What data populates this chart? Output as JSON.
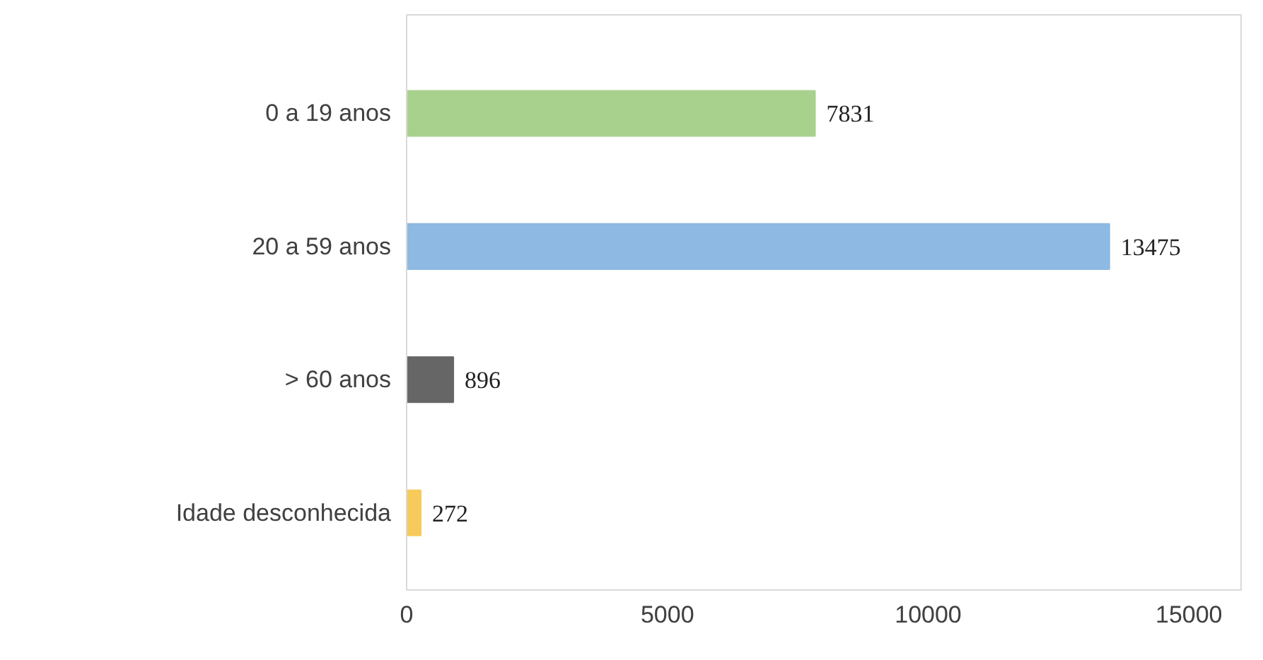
{
  "chart_data": {
    "type": "bar",
    "orientation": "horizontal",
    "categories": [
      "0 a 19 anos",
      "20 a 59 anos",
      "> 60 anos",
      "Idade desconhecida"
    ],
    "values": [
      7831,
      13475,
      896,
      272
    ],
    "colors": [
      "#a9d18e",
      "#8db9e2",
      "#666666",
      "#f6cb5c"
    ],
    "xlim": [
      0,
      16000
    ],
    "xticks": [
      0,
      5000,
      10000,
      15000
    ],
    "grid": false,
    "data_labels": true
  }
}
